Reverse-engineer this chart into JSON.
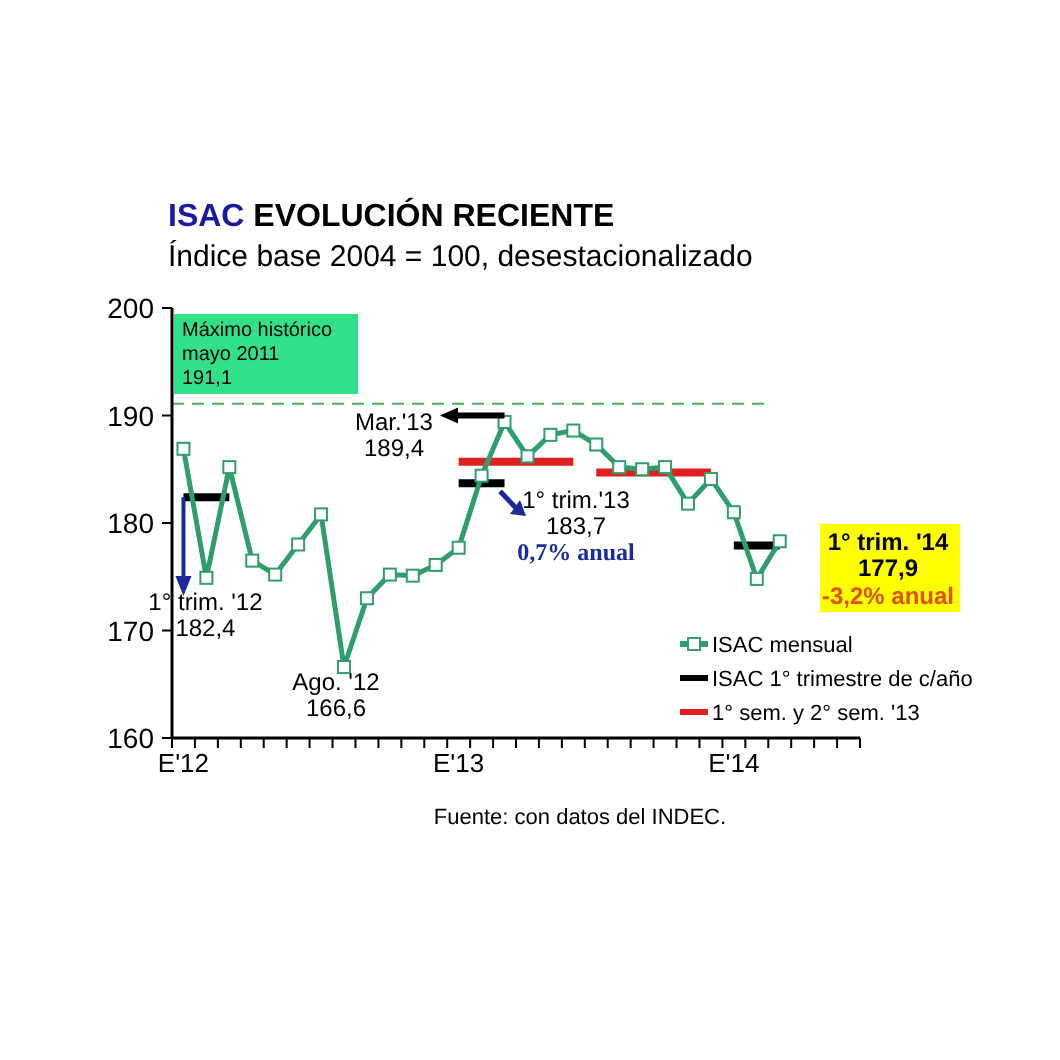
{
  "chart_data": {
    "type": "line",
    "title": "ISAC EVOLUCIÓN RECIENTE",
    "subtitle": "Índice base 2004 = 100, desestacionalizado",
    "categories": [
      "E'12",
      null,
      null,
      null,
      null,
      null,
      null,
      null,
      null,
      null,
      null,
      null,
      "E'13",
      null,
      null,
      null,
      null,
      null,
      null,
      null,
      null,
      null,
      null,
      null,
      "E'14",
      null,
      null,
      null,
      null,
      null
    ],
    "series": [
      {
        "name": "ISAC mensual",
        "color": "#2e9e6a",
        "marker": "square",
        "values": [
          186.9,
          174.9,
          185.2,
          176.5,
          175.2,
          178.0,
          180.8,
          166.6,
          173.0,
          175.2,
          175.1,
          176.1,
          177.7,
          184.4,
          189.4,
          186.2,
          188.2,
          188.6,
          187.3,
          185.2,
          185.0,
          185.2,
          181.8,
          184.1,
          181.0,
          174.8,
          178.3,
          null,
          null,
          null
        ]
      },
      {
        "name": "ISAC 1° trimestre de c/año",
        "color": "#000000",
        "marker": "none",
        "values": [
          182.4,
          182.4,
          182.4,
          null,
          null,
          null,
          null,
          null,
          null,
          null,
          null,
          null,
          183.7,
          183.7,
          183.7,
          null,
          null,
          null,
          null,
          null,
          null,
          null,
          null,
          null,
          177.9,
          177.9,
          177.9,
          null,
          null,
          null
        ]
      },
      {
        "name": "1° sem. y 2° sem. '13",
        "color": "#e02020",
        "marker": "none",
        "values": [
          null,
          null,
          null,
          null,
          null,
          null,
          null,
          null,
          null,
          null,
          null,
          null,
          185.7,
          185.7,
          185.7,
          185.7,
          185.7,
          185.7,
          184.7,
          184.7,
          184.7,
          184.7,
          184.7,
          184.7,
          null,
          null,
          null,
          null,
          null,
          null
        ]
      }
    ],
    "ylim": [
      160,
      200
    ],
    "yticks": [
      160,
      170,
      180,
      190,
      200
    ],
    "grid": false,
    "legend": "bottom right",
    "line_style": "solid",
    "ref_lines": [
      {
        "axis": "y",
        "value": 191.1,
        "label": "Máximo histórico\nmayo 2011\n191,1",
        "color": "#4caf50",
        "line_style": "dashed"
      }
    ],
    "annotations": [
      "Mar.'13\n189,4",
      {
        "text": "1° trim. '12\n182,4",
        "x": "E'12",
        "y": 182.4
      },
      "Ago. '12\n166,6",
      "1° trim.'13\n183,7",
      "0,7% anual",
      "1° trim. '14\n177,9",
      "-3,2% anual",
      "Fuente: con datos del INDEC."
    ]
  }
}
